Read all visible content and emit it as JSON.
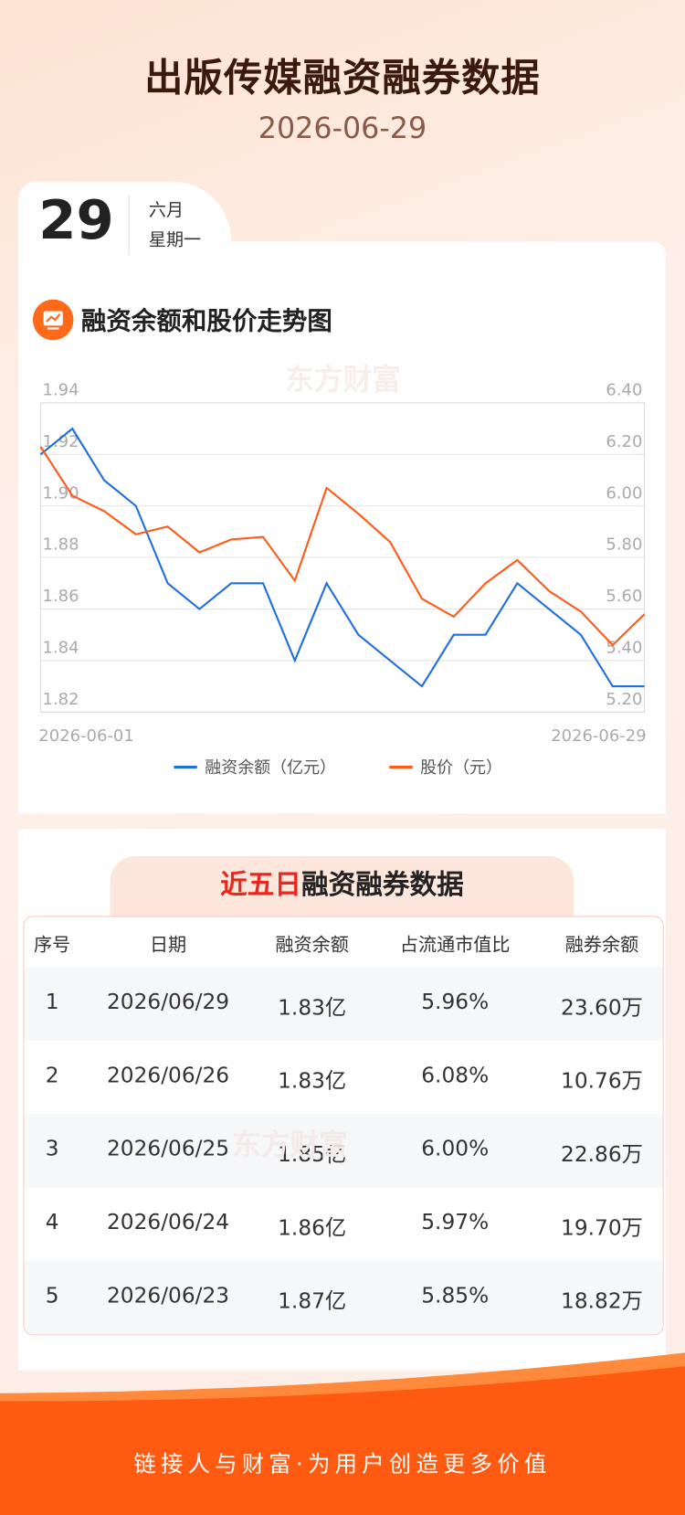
{
  "header": {
    "title": "出版传媒融资融券数据",
    "date": "2026-06-29"
  },
  "date_card": {
    "day": "29",
    "month": "六月",
    "weekday": "星期一"
  },
  "watermark": "东方财富",
  "chart_data": {
    "type": "line",
    "title": "融资余额和股价走势图",
    "categories": [
      "2026-06-01",
      null,
      null,
      null,
      null,
      null,
      null,
      null,
      null,
      null,
      null,
      null,
      null,
      null,
      null,
      null,
      null,
      null,
      null,
      "2026-06-29"
    ],
    "series": [
      {
        "name": "融资余额（亿元）",
        "color": "#1f6fde",
        "values": [
          1.92,
          1.93,
          1.91,
          1.9,
          1.87,
          1.86,
          1.87,
          1.87,
          1.84,
          1.87,
          1.85,
          1.84,
          1.83,
          1.85,
          1.85,
          1.87,
          1.86,
          1.85,
          1.83,
          1.83
        ]
      },
      {
        "name": "股价（元）",
        "color": "#ff5a1a",
        "axis": "y2",
        "values": [
          6.23,
          6.04,
          5.98,
          5.89,
          5.92,
          5.82,
          5.87,
          5.88,
          5.71,
          6.07,
          5.97,
          5.86,
          5.64,
          5.57,
          5.7,
          5.79,
          5.67,
          5.59,
          5.46,
          5.58
        ]
      }
    ],
    "ylim": [
      1.82,
      1.94
    ],
    "yticks": [
      1.94,
      1.92,
      {
        "value": 1.9,
        "label": "1.90"
      },
      1.88,
      1.86,
      1.84,
      1.82
    ],
    "y2lim": [
      5.2,
      6.4
    ],
    "y2ticks": [
      {
        "value": 6.4,
        "label": "6.40"
      },
      {
        "value": 6.2,
        "label": "6.20"
      },
      {
        "value": 6.0,
        "label": "6.00"
      },
      {
        "value": 5.8,
        "label": "5.80"
      },
      {
        "value": 5.6,
        "label": "5.60"
      },
      {
        "value": 5.4,
        "label": "5.40"
      },
      {
        "value": 5.2,
        "label": "5.20"
      }
    ],
    "grid": true
  },
  "table": {
    "title_highlight": "近五日",
    "title_rest": "融资融券数据",
    "columns": [
      "序号",
      "日期",
      "融资余额",
      "占流通市值比",
      "融券余额"
    ],
    "rows": [
      [
        "1",
        "2026/06/29",
        "1.83亿",
        "5.96%",
        "23.60万"
      ],
      [
        "2",
        "2026/06/26",
        "1.83亿",
        "6.08%",
        "10.76万"
      ],
      [
        "3",
        "2026/06/25",
        "1.85亿",
        "6.00%",
        "22.86万"
      ],
      [
        "4",
        "2026/06/24",
        "1.86亿",
        "5.97%",
        "19.70万"
      ],
      [
        "5",
        "2026/06/23",
        "1.87亿",
        "5.85%",
        "18.82万"
      ]
    ]
  },
  "footer": {
    "slogan": "链接人与财富·为用户创造更多价值"
  }
}
